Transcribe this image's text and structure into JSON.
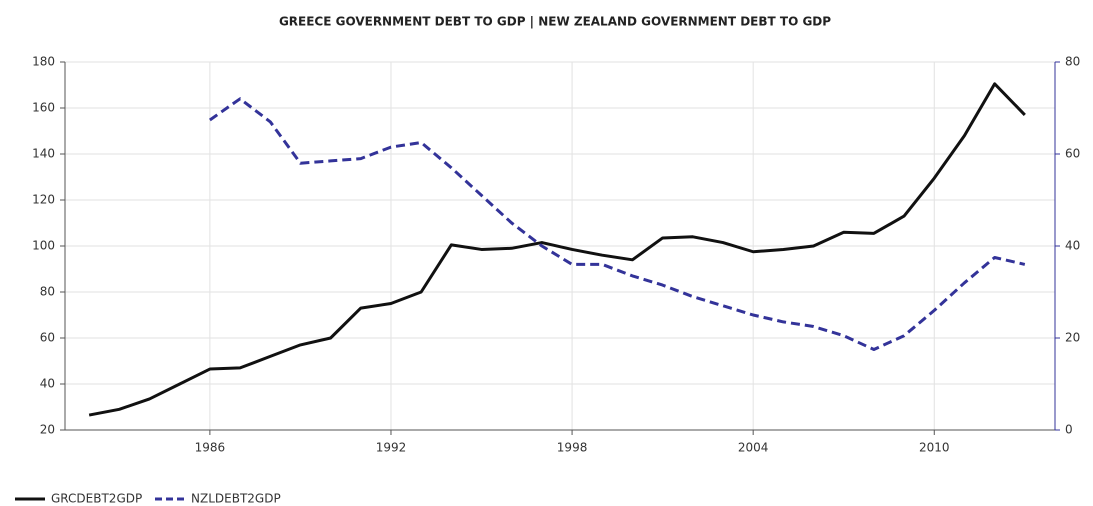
{
  "chart_data": {
    "type": "line",
    "title": "GREECE GOVERNMENT DEBT TO GDP | NEW ZEALAND GOVERNMENT DEBT TO GDP",
    "x": [
      1982,
      1983,
      1984,
      1985,
      1986,
      1987,
      1988,
      1989,
      1990,
      1991,
      1992,
      1993,
      1994,
      1995,
      1996,
      1997,
      1998,
      1999,
      2000,
      2001,
      2002,
      2003,
      2004,
      2005,
      2006,
      2007,
      2008,
      2009,
      2010,
      2011,
      2012,
      2013
    ],
    "series": [
      {
        "name": "GRCDEBT2GDP",
        "color": "#111111",
        "style": "solid",
        "values": [
          26.5,
          29,
          33.5,
          40,
          46.5,
          47,
          52,
          57,
          60,
          73,
          75,
          80,
          100.5,
          98.5,
          99,
          101.5,
          98.5,
          96,
          94,
          103.5,
          104,
          101.5,
          97.5,
          98.5,
          100,
          106,
          105.5,
          113,
          129.5,
          148,
          170.5,
          157
        ]
      },
      {
        "name": "NZLDEBT2GDP",
        "color": "#333399",
        "style": "dashed",
        "axis": "y2",
        "values": [
          null,
          null,
          null,
          null,
          67.4,
          72,
          67,
          58,
          58.5,
          59,
          61.5,
          62.5,
          57,
          51,
          45,
          40,
          36,
          36,
          33.5,
          31.5,
          29,
          27,
          25,
          23.5,
          22.5,
          20.5,
          17.5,
          20.5,
          26,
          32,
          37.5,
          36
        ]
      }
    ],
    "xlim": [
      1981.2,
      2014
    ],
    "xticks": [
      1986,
      1992,
      1998,
      2004,
      2010
    ],
    "ylim": [
      20,
      180
    ],
    "yticks": [
      20,
      40,
      60,
      80,
      100,
      120,
      140,
      160,
      180
    ],
    "y2lim": [
      0,
      80
    ],
    "y2ticks": [
      0,
      20,
      40,
      60,
      80
    ],
    "grid": true
  }
}
